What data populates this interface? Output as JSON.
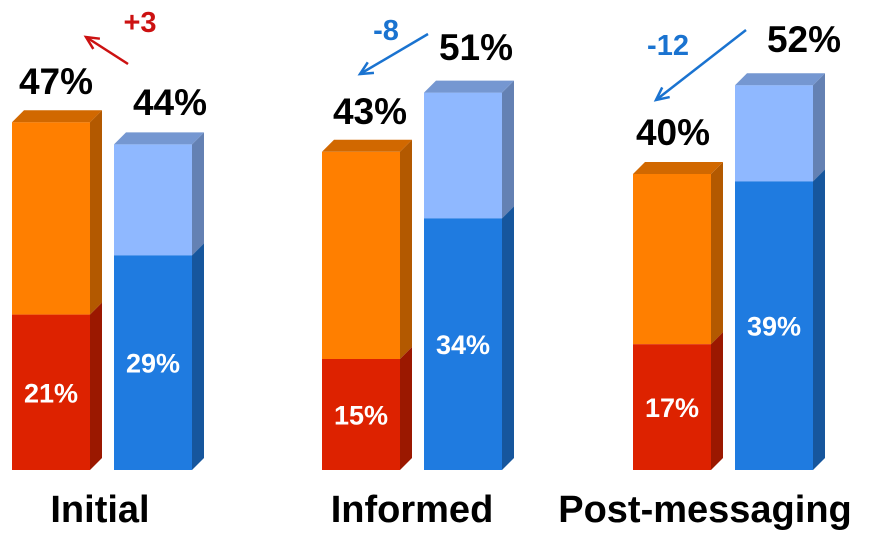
{
  "chart_data": {
    "type": "bar",
    "subtype": "stacked-3d",
    "title": "",
    "categories": [
      "Initial",
      "Informed",
      "Post-messaging"
    ],
    "ylim": [
      0,
      60
    ],
    "grid": false,
    "legend": "none",
    "series": [
      {
        "color": "#ff7f00",
        "inner_color": "#dd2200",
        "totals": [
          47,
          43,
          40
        ],
        "totals_labels": [
          "47%",
          "43%",
          "40%"
        ],
        "inner": [
          21,
          15,
          17
        ],
        "inner_labels": [
          "21%",
          "15%",
          "17%"
        ]
      },
      {
        "color": "#8fb8ff",
        "inner_color": "#1f7be0",
        "totals": [
          44,
          51,
          52
        ],
        "totals_labels": [
          "44%",
          "51%",
          "52%"
        ],
        "inner": [
          29,
          34,
          39
        ],
        "inner_labels": [
          "29%",
          "34%",
          "39%"
        ]
      }
    ],
    "annotations": [
      {
        "category": "Initial",
        "text": "+3",
        "color": "#cc1111"
      },
      {
        "category": "Informed",
        "text": "-8",
        "color": "#1a73d0"
      },
      {
        "category": "Post-messaging",
        "text": "-12",
        "color": "#1a73d0"
      }
    ]
  }
}
